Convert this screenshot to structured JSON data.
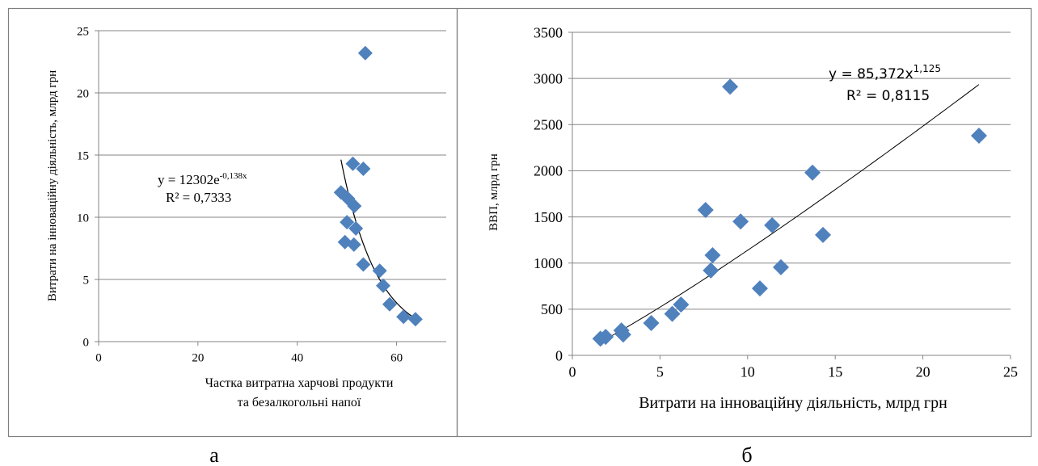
{
  "captions": {
    "left": "а",
    "right": "б"
  },
  "colors": {
    "marker": "#4F81BD",
    "grid": "#868686",
    "axis": "#868686",
    "trend": "#000000",
    "frame": "#7f7f7f"
  },
  "chart_data": [
    {
      "type": "scatter",
      "title": "",
      "ylabel": "Витрати на інноваційну діяльність, млрд грн",
      "xlabel_lines": [
        "Частка витратна харчові продукти",
        "та безалкогольні напої"
      ],
      "xlim": [
        0,
        70
      ],
      "ylim": [
        0,
        25
      ],
      "x_ticks": [
        "0",
        "20",
        "40",
        "60"
      ],
      "y_ticks": [
        "0",
        "5",
        "10",
        "15",
        "20",
        "25"
      ],
      "grid": "horizontal",
      "legend": "none",
      "trendline": {
        "kind": "exponential",
        "a": 12302,
        "b": -0.138,
        "x_range": [
          48.8,
          63.8
        ],
        "equation_main": "y = 12302e",
        "equation_exp": "-0,138x",
        "r2": "R² = 0,7333"
      },
      "points": [
        {
          "x": 53.7,
          "y": 23.2
        },
        {
          "x": 51.2,
          "y": 14.3
        },
        {
          "x": 53.3,
          "y": 13.9
        },
        {
          "x": 48.8,
          "y": 12.0
        },
        {
          "x": 50.2,
          "y": 11.5
        },
        {
          "x": 51.5,
          "y": 10.9
        },
        {
          "x": 50.0,
          "y": 9.6
        },
        {
          "x": 51.8,
          "y": 9.1
        },
        {
          "x": 49.6,
          "y": 8.0
        },
        {
          "x": 51.4,
          "y": 7.8
        },
        {
          "x": 53.3,
          "y": 6.2
        },
        {
          "x": 56.6,
          "y": 5.7
        },
        {
          "x": 57.3,
          "y": 4.5
        },
        {
          "x": 58.6,
          "y": 3.0
        },
        {
          "x": 61.4,
          "y": 2.0
        },
        {
          "x": 63.8,
          "y": 1.8
        }
      ]
    },
    {
      "type": "scatter",
      "title": "",
      "ylabel": "ВВП, млрд грн",
      "xlabel": "Витрати на інноваційну діяльність, млрд грн",
      "xlim": [
        0,
        25
      ],
      "ylim": [
        0,
        3500
      ],
      "x_ticks": [
        "0",
        "5",
        "10",
        "15",
        "20",
        "25"
      ],
      "y_ticks": [
        "0",
        "500",
        "1000",
        "1500",
        "2000",
        "2500",
        "3000",
        "3500"
      ],
      "grid": "horizontal",
      "legend": "none",
      "trendline": {
        "kind": "power",
        "a": 85.372,
        "b": 1.125,
        "x_range": [
          1.6,
          23.2
        ],
        "equation_main": "y = 85,372x",
        "equation_exp": "1,125",
        "r2": "R² = 0,8115"
      },
      "points": [
        {
          "x": 1.6,
          "y": 180
        },
        {
          "x": 1.9,
          "y": 200
        },
        {
          "x": 2.8,
          "y": 270
        },
        {
          "x": 2.9,
          "y": 225
        },
        {
          "x": 4.5,
          "y": 350
        },
        {
          "x": 5.7,
          "y": 450
        },
        {
          "x": 6.2,
          "y": 550
        },
        {
          "x": 7.6,
          "y": 1575
        },
        {
          "x": 7.9,
          "y": 920
        },
        {
          "x": 8.0,
          "y": 1085
        },
        {
          "x": 9.0,
          "y": 2910
        },
        {
          "x": 9.6,
          "y": 1450
        },
        {
          "x": 10.7,
          "y": 725
        },
        {
          "x": 11.4,
          "y": 1410
        },
        {
          "x": 11.9,
          "y": 955
        },
        {
          "x": 13.7,
          "y": 1980
        },
        {
          "x": 14.3,
          "y": 1305
        },
        {
          "x": 23.2,
          "y": 2380
        }
      ]
    }
  ]
}
